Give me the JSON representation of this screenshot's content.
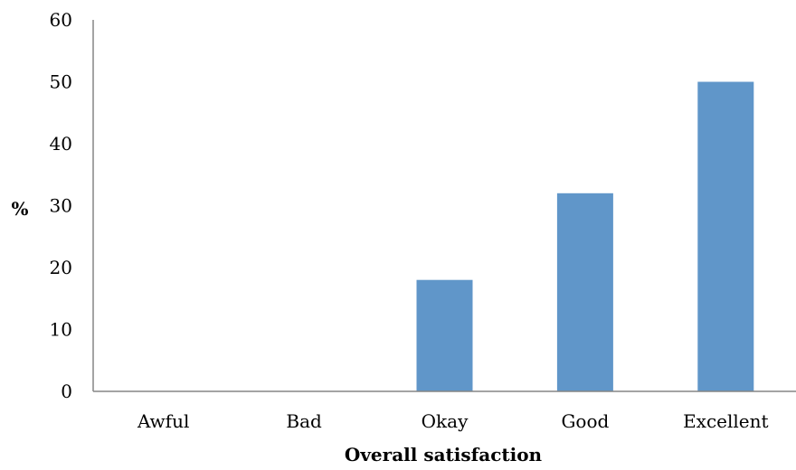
{
  "chart_data": {
    "type": "bar",
    "categories": [
      "Awful",
      "Bad",
      "Okay",
      "Good",
      "Excellent"
    ],
    "values": [
      0,
      0,
      18,
      32,
      50
    ],
    "xlabel": "Overall satisfaction",
    "ylabel": "%",
    "ylim": [
      0,
      60
    ],
    "yticks": [
      "0",
      "10",
      "20",
      "30",
      "40",
      "50",
      "60"
    ],
    "grid": false,
    "bar_color": "#6096C9",
    "axis_color": "#868686"
  }
}
